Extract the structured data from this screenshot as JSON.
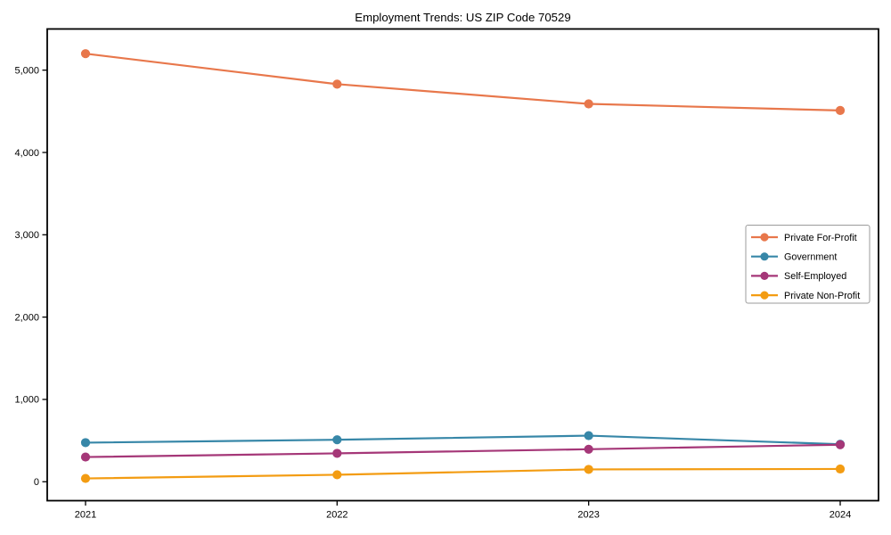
{
  "figure": {
    "background": "#ffffff"
  },
  "chart_data": {
    "type": "line",
    "title": "Employment Trends: US ZIP Code 70529",
    "categories": [
      "2021",
      "2022",
      "2023",
      "2024"
    ],
    "series": [
      {
        "name": "Private For-Profit",
        "color": "#e8774b",
        "values": [
          5200,
          4830,
          4590,
          4510
        ]
      },
      {
        "name": "Government",
        "color": "#3787a8",
        "values": [
          475,
          510,
          560,
          455
        ]
      },
      {
        "name": "Self-Employed",
        "color": "#a53778",
        "values": [
          300,
          345,
          395,
          450
        ]
      },
      {
        "name": "Private Non-Profit",
        "color": "#f39c12",
        "values": [
          40,
          85,
          150,
          155
        ]
      }
    ],
    "xlabel": "",
    "ylabel": "",
    "ylim": [
      -230,
      5500
    ],
    "yticks": [
      0,
      1000,
      2000,
      3000,
      4000,
      5000
    ],
    "ytick_labels": [
      "0",
      "1,000",
      "2,000",
      "3,000",
      "4,000",
      "5,000"
    ],
    "grid": false,
    "legend_position": "center-right",
    "marker": "circle",
    "axis_color": "#000000",
    "text_color": "#000000",
    "legend_border_color": "#9b9b9b",
    "legend_background": "#ffffff"
  }
}
